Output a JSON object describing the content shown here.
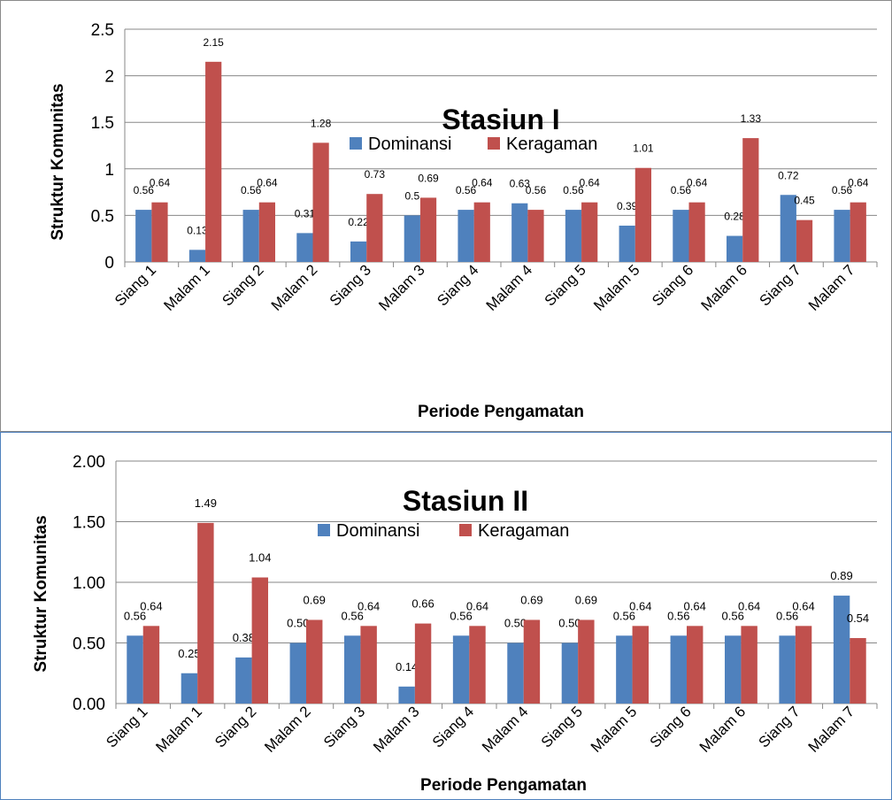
{
  "chart_data": [
    {
      "type": "bar",
      "title": "Stasiun I",
      "xlabel": "Periode Pengamatan",
      "ylabel": "Struktur Komunitas",
      "ylim": [
        0,
        2.5
      ],
      "yticks": [
        "0",
        "0.5",
        "1",
        "1.5",
        "2",
        "2.5"
      ],
      "grid": true,
      "legend_position": "top-center",
      "categories": [
        "Siang 1",
        "Malam 1",
        "Siang 2",
        "Malam 2",
        "Siang 3",
        "Malam 3",
        "Siang 4",
        "Malam 4",
        "Siang 5",
        "Malam 5",
        "Siang 6",
        "Malam 6",
        "Siang 7",
        "Malam 7"
      ],
      "series": [
        {
          "name": "Dominansi",
          "color": "#4f81bd",
          "values": [
            0.56,
            0.13,
            0.56,
            0.31,
            0.22,
            0.5,
            0.56,
            0.63,
            0.56,
            0.39,
            0.56,
            0.28,
            0.72,
            0.56
          ],
          "labels": [
            "0.56",
            "0.13",
            "0.56",
            "0.31",
            "0.22",
            "0.5",
            "0.56",
            "0.63",
            "0.56",
            "0.39",
            "0.56",
            "0.28",
            "0.72",
            "0.56"
          ]
        },
        {
          "name": "Keragaman",
          "color": "#c0504d",
          "values": [
            0.64,
            2.15,
            0.64,
            1.28,
            0.73,
            0.69,
            0.64,
            0.56,
            0.64,
            1.01,
            0.64,
            1.33,
            0.45,
            0.64
          ],
          "labels": [
            "0.64",
            "2.15",
            "0.64",
            "1.28",
            "0.73",
            "0.69",
            "0.64",
            "0.56",
            "0.64",
            "1.01",
            "0.64",
            "1.33",
            "0.45",
            "0.64"
          ]
        }
      ]
    },
    {
      "type": "bar",
      "title": "Stasiun II",
      "xlabel": "Periode Pengamatan",
      "ylabel": "Struktur Komunitas",
      "ylim": [
        0,
        2
      ],
      "yticks": [
        "0.00",
        "0.50",
        "1.00",
        "1.50",
        "2.00"
      ],
      "grid": true,
      "legend_position": "top-center",
      "categories": [
        "Siang 1",
        "Malam 1",
        "Siang 2",
        "Malam 2",
        "Siang 3",
        "Malam 3",
        "Siang 4",
        "Malam 4",
        "Siang 5",
        "Malam 5",
        "Siang 6",
        "Malam 6",
        "Siang 7",
        "Malam 7"
      ],
      "series": [
        {
          "name": "Dominansi",
          "color": "#4f81bd",
          "values": [
            0.56,
            0.25,
            0.38,
            0.5,
            0.56,
            0.14,
            0.56,
            0.5,
            0.5,
            0.56,
            0.56,
            0.56,
            0.56,
            0.89
          ],
          "labels": [
            "0.56",
            "0.25",
            "0.38",
            "0.50",
            "0.56",
            "0.14",
            "0.56",
            "0.50",
            "0.50",
            "0.56",
            "0.56",
            "0.56",
            "0.56",
            "0.89"
          ]
        },
        {
          "name": "Keragaman",
          "color": "#c0504d",
          "values": [
            0.64,
            1.49,
            1.04,
            0.69,
            0.64,
            0.66,
            0.64,
            0.69,
            0.69,
            0.64,
            0.64,
            0.64,
            0.64,
            0.54
          ],
          "labels": [
            "0.64",
            "1.49",
            "1.04",
            "0.69",
            "0.64",
            "0.66",
            "0.64",
            "0.69",
            "0.69",
            "0.64",
            "0.64",
            "0.64",
            "0.64",
            "0.54"
          ]
        }
      ]
    }
  ]
}
